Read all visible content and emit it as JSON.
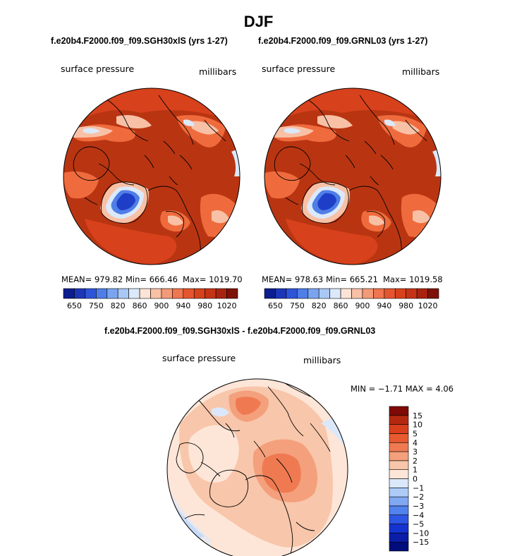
{
  "title": "DJF",
  "colors": {
    "fill_dark_red": "#b93512",
    "fill_red": "#d7411c",
    "fill_orange": "#ef6b3d",
    "blue_deep": "#1f3ec8",
    "diff_salmon": "#f6a98e",
    "diff_pale": "#fde3d5"
  },
  "panels": [
    {
      "subtitle": "f.e20b4.F2000.f09_f09.SGH30xlS (yrs 1-27)",
      "left_label": "surface pressure",
      "right_label": "millibars",
      "stats": {
        "mean": "MEAN= 979.82",
        "min": "Min= 666.46",
        "max": "Max= 1019.70"
      }
    },
    {
      "subtitle": "f.e20b4.F2000.f09_f09.GRNL03 (yrs 1-27)",
      "left_label": "surface pressure",
      "right_label": "millibars",
      "stats": {
        "mean": "MEAN= 978.63",
        "min": "Min= 665.21",
        "max": "Max= 1019.58"
      }
    }
  ],
  "diff_panel": {
    "subtitle": "f.e20b4.F2000.f09_f09.SGH30xlS - f.e20b4.F2000.f09_f09.GRNL03",
    "left_label": "surface pressure",
    "right_label": "millibars",
    "minmax": "MIN =  −1.71 MAX =    4.06"
  },
  "chart_data": [
    {
      "type": "heatmap",
      "projection": "north polar stereographic",
      "colorbar": {
        "orientation": "horizontal",
        "colors": [
          "#0c1d8f",
          "#1c36b8",
          "#2e55d8",
          "#4f7ee7",
          "#7aa4f0",
          "#a9c8f5",
          "#dbe9fb",
          "#fde3d5",
          "#f8c1a6",
          "#f39a78",
          "#ef7650",
          "#e5552e",
          "#d7411c",
          "#c53316",
          "#a92410",
          "#7f1208"
        ],
        "tick_labels": [
          "650",
          "750",
          "820",
          "860",
          "900",
          "940",
          "980",
          "1020"
        ]
      }
    },
    {
      "type": "heatmap",
      "projection": "north polar stereographic",
      "colorbar": {
        "orientation": "horizontal",
        "colors": [
          "#0c1d8f",
          "#1c36b8",
          "#2e55d8",
          "#4f7ee7",
          "#7aa4f0",
          "#a9c8f5",
          "#dbe9fb",
          "#fde3d5",
          "#f8c1a6",
          "#f39a78",
          "#ef7650",
          "#e5552e",
          "#d7411c",
          "#c53316",
          "#a92410",
          "#7f1208"
        ],
        "tick_labels": [
          "650",
          "750",
          "820",
          "860",
          "900",
          "940",
          "980",
          "1020"
        ]
      }
    },
    {
      "type": "heatmap",
      "projection": "north polar stereographic",
      "colorbar": {
        "orientation": "vertical",
        "colors": [
          "#000d7a",
          "#0a1ea8",
          "#1533d0",
          "#2e56e4",
          "#5282ee",
          "#80a8f3",
          "#aecbf7",
          "#dbe8fb",
          "#fde6d8",
          "#f8c6aa",
          "#f4a07c",
          "#ef7a52",
          "#e85a30",
          "#d8401c",
          "#b52810",
          "#7f0a06"
        ],
        "tick_labels": [
          "15",
          "10",
          "5",
          "4",
          "3",
          "2",
          "1",
          "0",
          "−1",
          "−2",
          "−3",
          "−4",
          "−5",
          "−10",
          "−15"
        ]
      }
    }
  ]
}
